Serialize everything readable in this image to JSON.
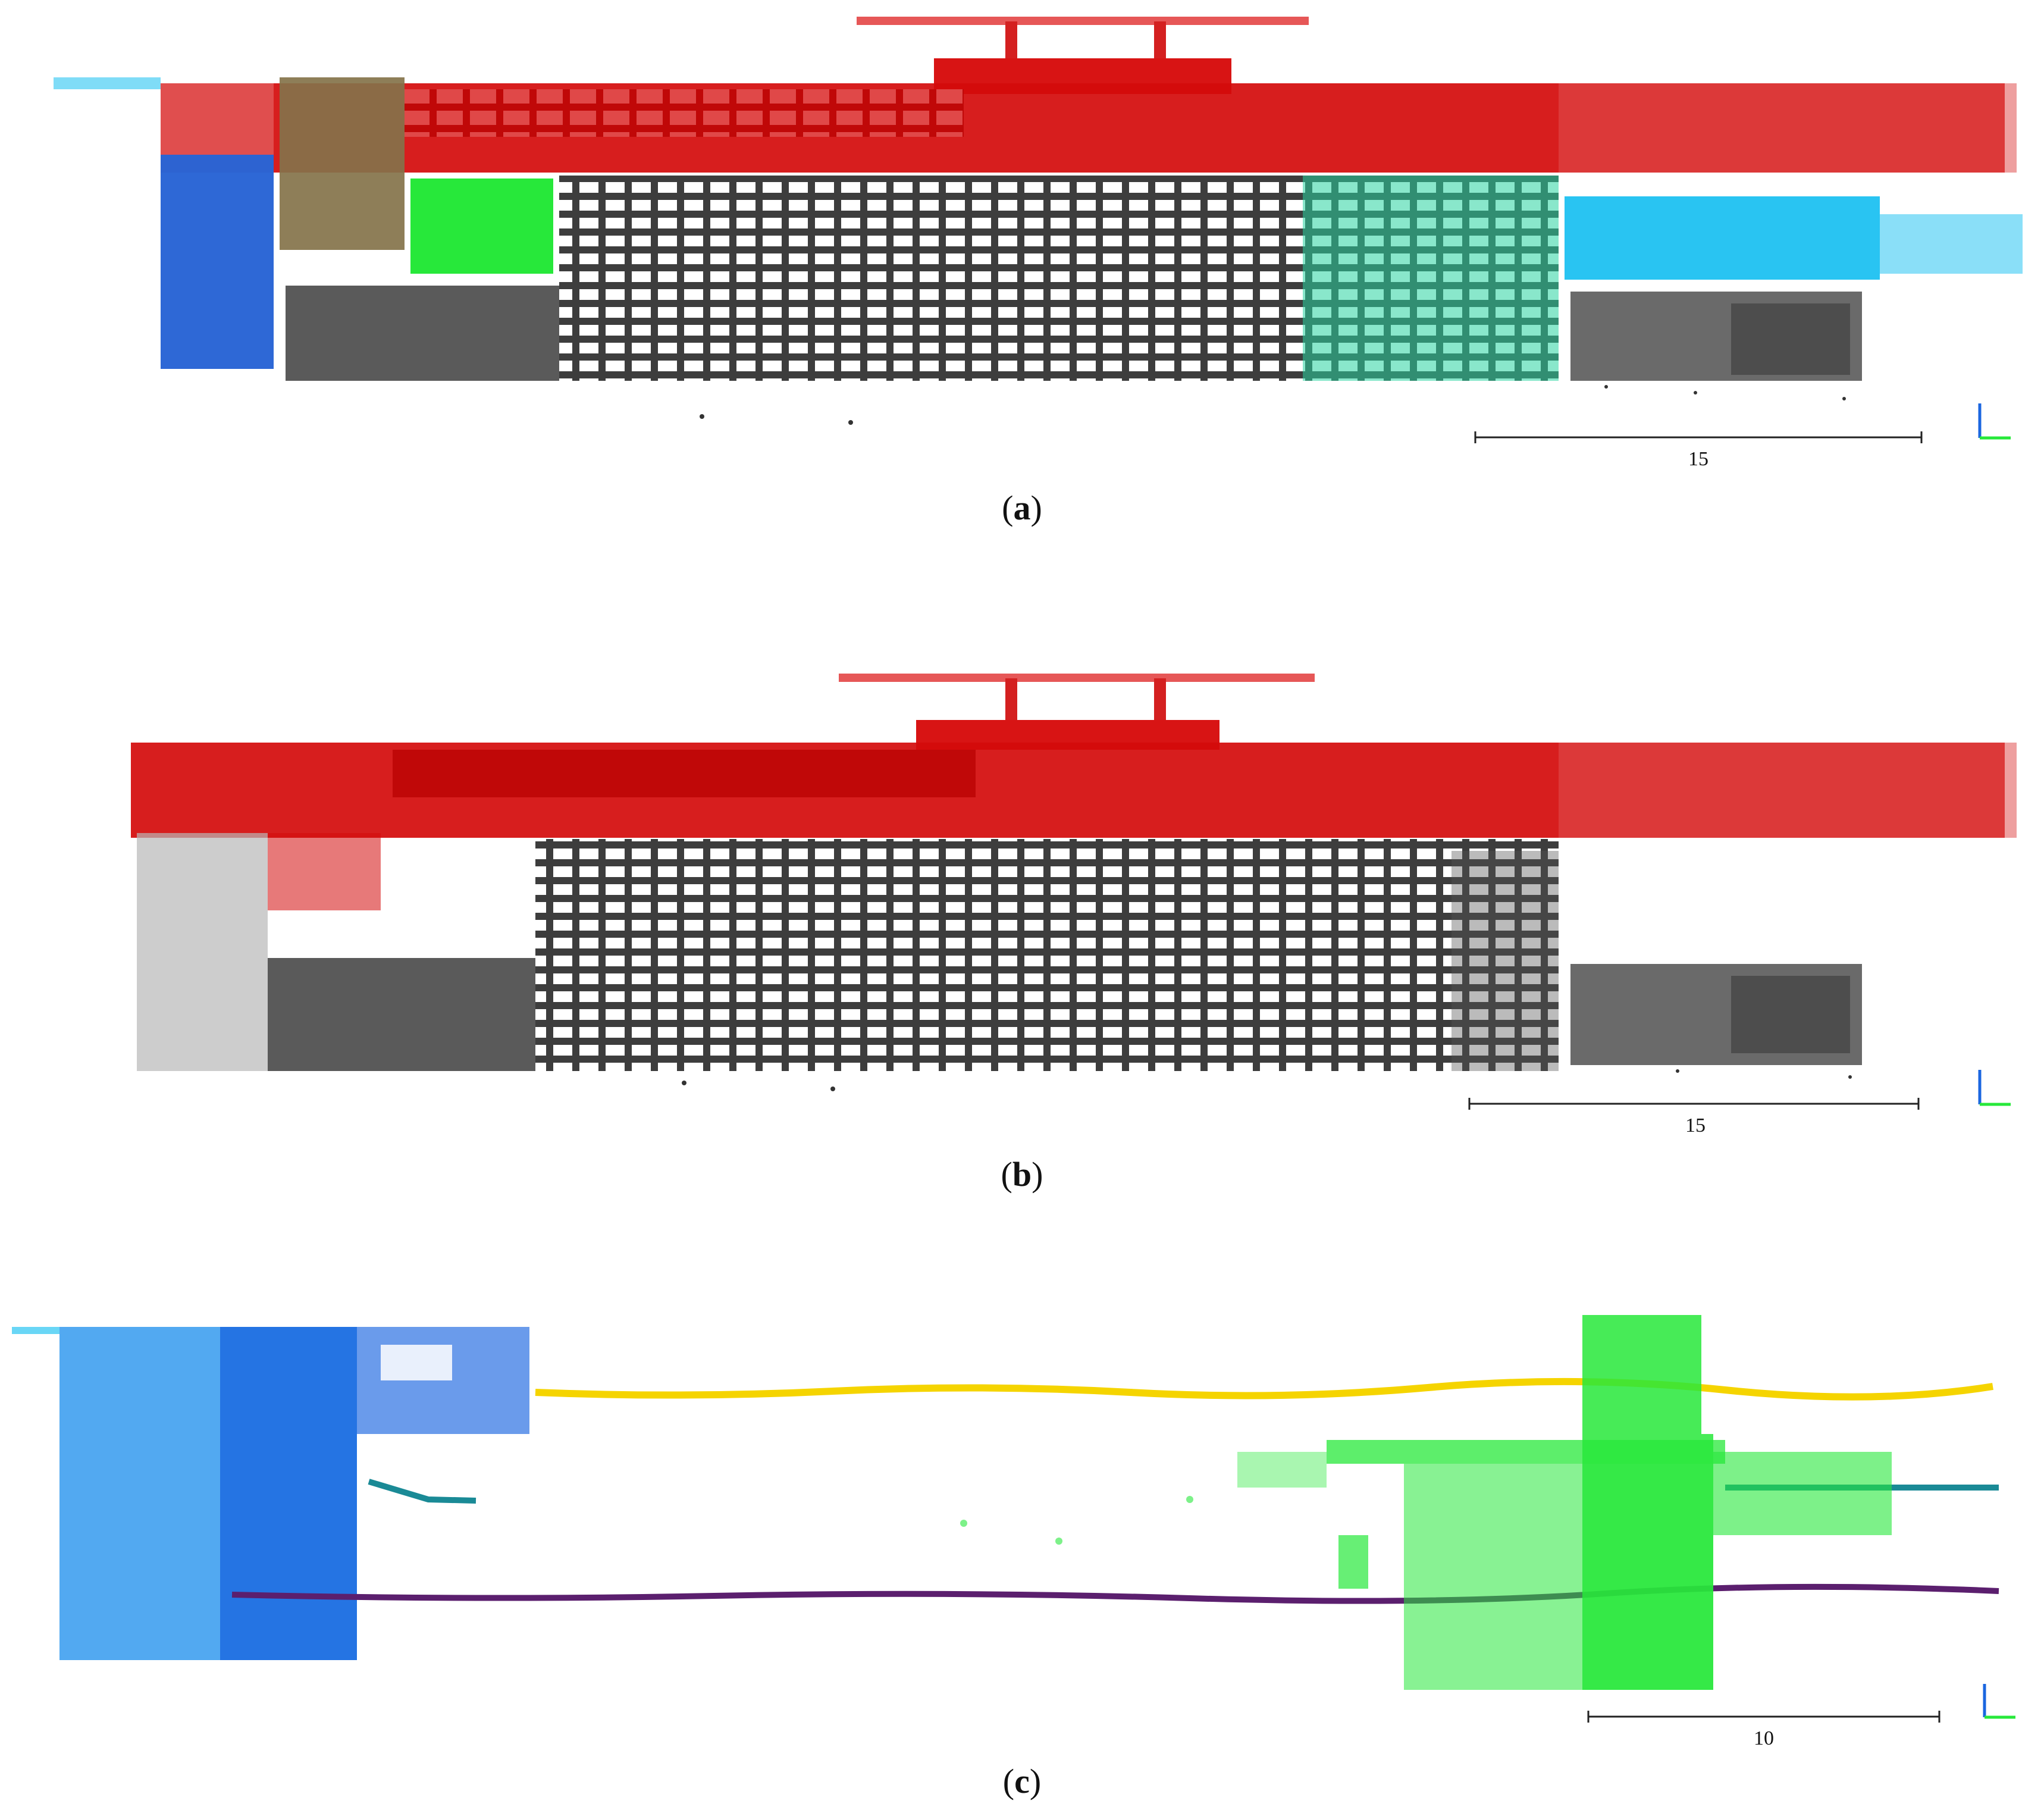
{
  "panels": [
    {
      "id": "a",
      "caption_open": "(",
      "caption_letter": "a",
      "caption_close": ")",
      "scale_label": "15"
    },
    {
      "id": "b",
      "caption_open": "(",
      "caption_letter": "b",
      "caption_close": ")",
      "scale_label": "15"
    },
    {
      "id": "c",
      "caption_open": "(",
      "caption_letter": "c",
      "caption_close": ")",
      "scale_label": "10"
    }
  ],
  "colors": {
    "segment_red": "#d40b0b",
    "segment_green": "#27e83a",
    "segment_cyan": "#29c4f2",
    "segment_blue": "#1a66e0",
    "facade_gray": "#4a4a4a",
    "trajectory_yellow": "#f5d400",
    "trajectory_teal": "#1a8a96",
    "trajectory_purple": "#5b1f6e"
  }
}
